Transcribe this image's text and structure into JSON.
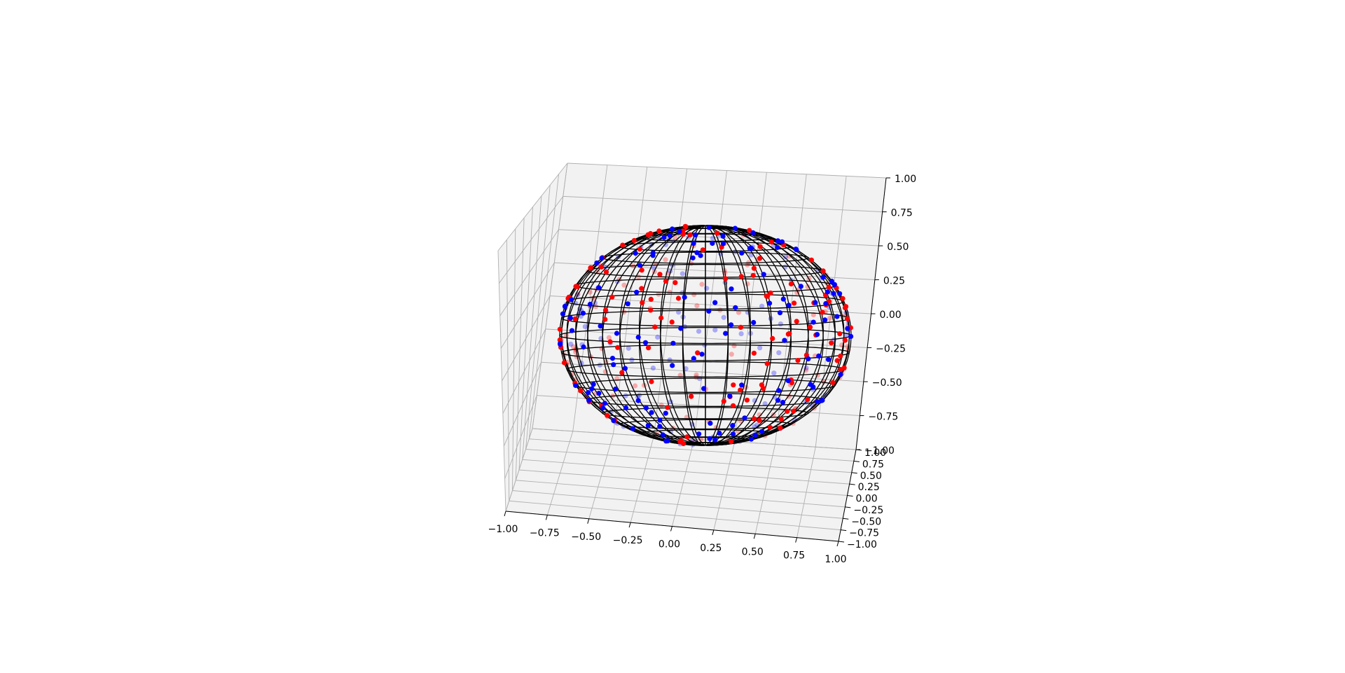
{
  "chart_data": {
    "type": "scatter",
    "projection": "3d",
    "title": "",
    "xlabel": "",
    "ylabel": "",
    "zlabel": "",
    "xlim": [
      -1.0,
      1.0
    ],
    "ylim": [
      -1.0,
      1.0
    ],
    "zlim": [
      -1.0,
      1.0
    ],
    "x_ticks": [
      "−1.00",
      "−0.75",
      "−0.50",
      "−0.25",
      "0.00",
      "0.25",
      "0.50",
      "0.75",
      "1.00"
    ],
    "y_ticks": [
      "−1.00",
      "−0.75",
      "−0.50",
      "−0.25",
      "0.00",
      "0.25",
      "0.50",
      "0.75",
      "1.00"
    ],
    "z_ticks": [
      "−1.00",
      "−0.75",
      "−0.50",
      "−0.25",
      "0.00",
      "0.25",
      "0.50",
      "0.75",
      "1.00"
    ],
    "grid": true,
    "legend": "none",
    "surface": {
      "type": "wireframe",
      "shape": "unit sphere",
      "color": "#000000"
    },
    "series": [
      {
        "color": "#ff0000",
        "count": 250,
        "distribution": "uniform on unit sphere surface"
      },
      {
        "color": "#0000ff",
        "count": 250,
        "distribution": "uniform on unit sphere surface"
      }
    ],
    "pane_color": "#f2f2f2",
    "grid_color": "#b0b0b0"
  }
}
